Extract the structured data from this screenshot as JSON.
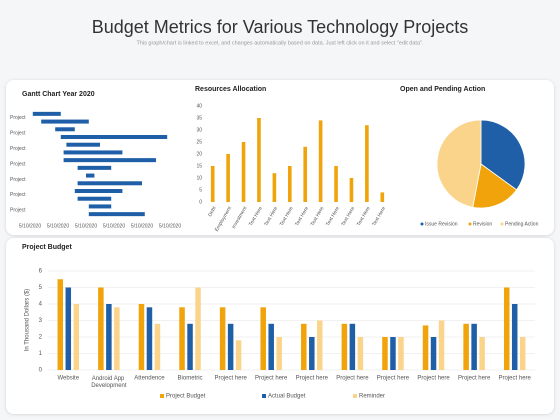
{
  "header": {
    "title": "Budget Metrics for Various Technology Projects",
    "subtitle": "This graph/chart is linked to excel, and changes automatically  based on data. Just left click on it and select \"edit data\"."
  },
  "chart_data": [
    {
      "type": "gantt",
      "title": "Gantt Chart Year 2020",
      "color": "#1f5fa8",
      "categories": [
        "Project",
        null,
        "Project",
        null,
        "Project",
        null,
        "Project",
        null,
        "Project",
        null,
        "Project",
        null,
        "Project",
        null
      ],
      "starts": [
        0.1,
        0.4,
        0.9,
        1.1,
        1.3,
        1.2,
        1.2,
        1.7,
        2.0,
        1.7,
        1.6,
        1.7,
        2.1,
        2.1
      ],
      "ends": [
        1.1,
        2.1,
        1.6,
        4.9,
        2.5,
        3.3,
        4.5,
        2.9,
        2.3,
        4.0,
        3.3,
        2.9,
        2.9,
        4.1
      ],
      "xlim": [
        0,
        5
      ],
      "xticks": [
        {
          "value": 0,
          "label": "5/10/2020"
        },
        {
          "value": 1,
          "label": "5/10/2020"
        },
        {
          "value": 2,
          "label": "5/10/2020"
        },
        {
          "value": 3,
          "label": "5/10/2020"
        },
        {
          "value": 4,
          "label": "5/10/2020"
        },
        {
          "value": 5,
          "label": "5/10/2020"
        }
      ]
    },
    {
      "type": "bar",
      "title": "Resources Allocation",
      "color": "#f0a30a",
      "categories": [
        "Debt",
        "Employment",
        "Investment",
        "Text Here",
        "Text Here",
        "Text Here",
        "Text Here",
        "Text Here",
        "Text Here",
        "Text Here",
        "Text Here",
        "Text Here"
      ],
      "values": [
        15,
        20,
        25,
        35,
        12,
        15,
        23,
        34,
        15,
        10,
        32,
        4
      ],
      "ylim": [
        0,
        40
      ],
      "yticks": [
        0,
        5,
        10,
        15,
        20,
        25,
        30,
        35,
        40
      ]
    },
    {
      "type": "pie",
      "title": "Open and Pending Action",
      "categories": [
        "Issue Revision",
        "Revision",
        "Pending Action"
      ],
      "values": [
        35,
        18,
        47
      ],
      "colors": [
        "#1f5fa8",
        "#f0a30a",
        "#fbd48c"
      ]
    },
    {
      "type": "grouped",
      "title": "Project Budget",
      "ylabel": "In Thousand Dollars ($)",
      "categories": [
        "Website",
        "Android App Development",
        "Attendence",
        "Biometric",
        "Project here",
        "Project here",
        "Project here",
        "Project here",
        "Project here",
        "Project here",
        "Project here",
        "Project here"
      ],
      "series": [
        {
          "name": "Project Budget",
          "color": "#f0a30a",
          "values": [
            5.5,
            5,
            4,
            3.8,
            3.8,
            3.8,
            2.8,
            2.8,
            2,
            2.7,
            2.8,
            5
          ]
        },
        {
          "name": "Actual Budget",
          "color": "#1f5fa8",
          "values": [
            5,
            4,
            3.8,
            2.8,
            2.8,
            2.8,
            2,
            2.8,
            2,
            2,
            2.8,
            4
          ]
        },
        {
          "name": "Reminder",
          "color": "#fbd48c",
          "values": [
            4,
            3.8,
            2.8,
            5,
            1.8,
            2,
            3,
            2,
            2,
            3,
            2,
            2
          ]
        }
      ],
      "ylim": [
        0,
        6
      ],
      "yticks": [
        0,
        1,
        2,
        3,
        4,
        5,
        6
      ],
      "grid": true
    }
  ]
}
